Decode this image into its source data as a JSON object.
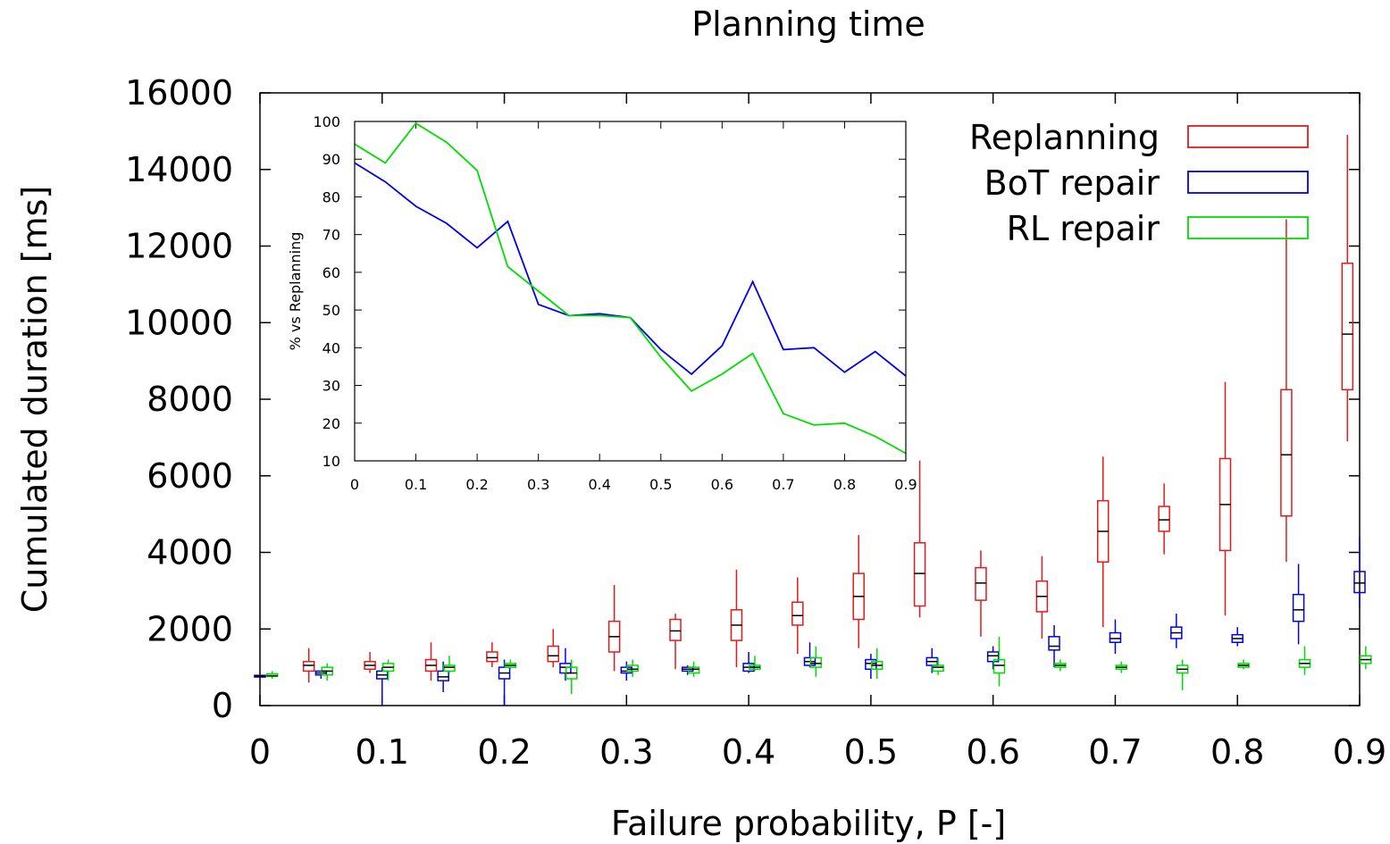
{
  "chart_data": [
    {
      "type": "box",
      "title": "Planning time",
      "xlabel": "Failure probability, P [-]",
      "ylabel": "Cumulated duration [ms]",
      "xlim": [
        0,
        0.9
      ],
      "ylim": [
        0,
        16000
      ],
      "xticks": [
        0,
        0.1,
        0.2,
        0.3,
        0.4,
        0.5,
        0.6,
        0.7,
        0.8,
        0.9
      ],
      "xtick_labels": [
        "0",
        "0.1",
        "0.2",
        "0.3",
        "0.4",
        "0.5",
        "0.6",
        "0.7",
        "0.8",
        "0.9"
      ],
      "yticks": [
        0,
        2000,
        4000,
        6000,
        8000,
        10000,
        12000,
        14000,
        16000
      ],
      "ytick_labels": [
        "0",
        "2000",
        "4000",
        "6000",
        "8000",
        "10000",
        "12000",
        "14000",
        "16000"
      ],
      "legend_position": "top-right",
      "series": [
        {
          "name": "Replanning",
          "color": "#e31a1c",
          "x": [
            0,
            0.04,
            0.09,
            0.14,
            0.19,
            0.24,
            0.29,
            0.34,
            0.39,
            0.44,
            0.49,
            0.54,
            0.59,
            0.64,
            0.69,
            0.74,
            0.79,
            0.84,
            0.89
          ],
          "min": [
            750,
            600,
            850,
            650,
            1000,
            1000,
            900,
            950,
            1000,
            1350,
            1500,
            2300,
            1800,
            1750,
            2050,
            3950,
            2350,
            3750,
            6900
          ],
          "q1": [
            770,
            900,
            950,
            900,
            1150,
            1150,
            1400,
            1700,
            1700,
            2100,
            2250,
            2600,
            2750,
            2450,
            3750,
            4550,
            4050,
            4950,
            8250
          ],
          "median": [
            780,
            1050,
            1050,
            1050,
            1250,
            1300,
            1800,
            1950,
            2100,
            2350,
            2850,
            3450,
            3200,
            2850,
            4550,
            4850,
            5250,
            6550,
            9700
          ],
          "q3": [
            790,
            1150,
            1150,
            1200,
            1400,
            1550,
            2200,
            2250,
            2500,
            2700,
            3450,
            4250,
            3600,
            3250,
            5350,
            5200,
            6450,
            8250,
            11550
          ],
          "max": [
            800,
            1500,
            1400,
            1650,
            1650,
            2000,
            3150,
            2400,
            3550,
            3350,
            4450,
            6400,
            4050,
            3900,
            6500,
            5800,
            8450,
            12700,
            14900
          ]
        },
        {
          "name": "BoT repair",
          "color": "#0000ee",
          "x": [
            0,
            0.05,
            0.1,
            0.15,
            0.2,
            0.25,
            0.3,
            0.35,
            0.4,
            0.45,
            0.5,
            0.55,
            0.6,
            0.65,
            0.7,
            0.75,
            0.8,
            0.85,
            0.9
          ],
          "min": [
            750,
            700,
            0,
            350,
            0,
            650,
            650,
            800,
            850,
            1000,
            700,
            850,
            950,
            1000,
            1350,
            1500,
            1550,
            1600,
            2550
          ],
          "q1": [
            760,
            800,
            700,
            650,
            700,
            850,
            850,
            900,
            900,
            1050,
            950,
            1050,
            1150,
            1450,
            1650,
            1750,
            1650,
            2200,
            2950
          ],
          "median": [
            770,
            850,
            800,
            750,
            850,
            1000,
            900,
            950,
            1000,
            1150,
            1100,
            1150,
            1300,
            1550,
            1750,
            1900,
            1750,
            2500,
            3200
          ],
          "q3": [
            780,
            900,
            900,
            900,
            1000,
            1100,
            1000,
            1000,
            1100,
            1250,
            1200,
            1250,
            1400,
            1800,
            1900,
            2050,
            1850,
            2900,
            3500
          ],
          "max": [
            790,
            900,
            1000,
            1150,
            1200,
            1500,
            1150,
            1050,
            1400,
            1650,
            1350,
            1500,
            1550,
            2100,
            2250,
            2400,
            2050,
            3700,
            4400
          ]
        },
        {
          "name": "RL repair",
          "color": "#00dd00",
          "x": [
            0.01,
            0.055,
            0.105,
            0.155,
            0.205,
            0.255,
            0.305,
            0.355,
            0.405,
            0.455,
            0.505,
            0.555,
            0.605,
            0.655,
            0.705,
            0.755,
            0.805,
            0.855,
            0.905
          ],
          "min": [
            700,
            650,
            650,
            850,
            950,
            300,
            750,
            750,
            900,
            750,
            700,
            800,
            500,
            900,
            850,
            400,
            950,
            800,
            950
          ],
          "q1": [
            760,
            800,
            900,
            900,
            1000,
            700,
            900,
            850,
            950,
            1000,
            950,
            900,
            850,
            1000,
            950,
            850,
            1000,
            1000,
            1100
          ],
          "median": [
            780,
            900,
            1000,
            1000,
            1050,
            850,
            950,
            950,
            1000,
            1100,
            1050,
            1000,
            1050,
            1050,
            1000,
            950,
            1050,
            1100,
            1200
          ],
          "q3": [
            830,
            1000,
            1100,
            1050,
            1100,
            1000,
            1050,
            1000,
            1050,
            1250,
            1150,
            1050,
            1200,
            1100,
            1050,
            1050,
            1100,
            1200,
            1300
          ],
          "max": [
            900,
            1100,
            1200,
            1300,
            1200,
            1200,
            1200,
            1150,
            1300,
            1550,
            1500,
            1250,
            1800,
            1200,
            1150,
            1200,
            1200,
            1550,
            1550
          ]
        }
      ]
    },
    {
      "type": "line",
      "title": "",
      "xlabel": "",
      "ylabel": "% vs Replanning",
      "xlim": [
        0,
        0.9
      ],
      "ylim": [
        10,
        100
      ],
      "xticks": [
        0,
        0.1,
        0.2,
        0.3,
        0.4,
        0.5,
        0.6,
        0.7,
        0.8,
        0.9
      ],
      "xtick_labels": [
        "0",
        "0.1",
        "0.2",
        "0.3",
        "0.4",
        "0.5",
        "0.6",
        "0.7",
        "0.8",
        "0.9"
      ],
      "yticks": [
        10,
        20,
        30,
        40,
        50,
        60,
        70,
        80,
        90,
        100
      ],
      "ytick_labels": [
        "10",
        "20",
        "30",
        "40",
        "50",
        "60",
        "70",
        "80",
        "90",
        "100"
      ],
      "x": [
        0,
        0.05,
        0.1,
        0.15,
        0.2,
        0.25,
        0.3,
        0.35,
        0.4,
        0.45,
        0.5,
        0.55,
        0.6,
        0.65,
        0.7,
        0.75,
        0.8,
        0.85,
        0.9
      ],
      "series": [
        {
          "color": "#0000ee",
          "values": [
            89,
            84,
            77.5,
            73,
            66.5,
            73.5,
            51.5,
            48.5,
            49,
            48,
            39.5,
            33,
            40.5,
            57.5,
            39.5,
            40,
            33.5,
            39,
            32.5
          ]
        },
        {
          "color": "#00dd00",
          "values": [
            94,
            89,
            99.5,
            94.5,
            87,
            61.5,
            55,
            48.5,
            48.5,
            48,
            37.5,
            28.5,
            33,
            38.5,
            22.5,
            19.5,
            20,
            16.5,
            12
          ]
        }
      ]
    }
  ]
}
